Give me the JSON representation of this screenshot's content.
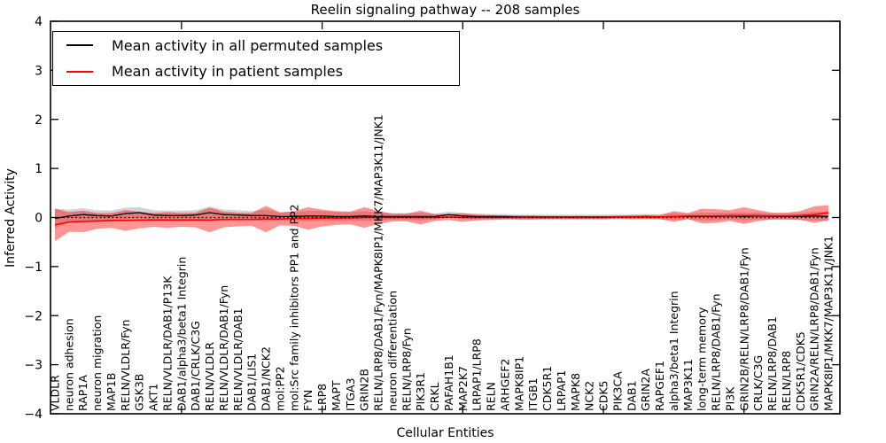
{
  "chart_data": {
    "type": "line",
    "title": "Reelin signaling pathway -- 208 samples",
    "xlabel": "Cellular Entities",
    "ylabel": "Inferred Activity",
    "ylim": [
      -4,
      4
    ],
    "yticks": [
      4,
      3,
      2,
      1,
      0,
      -1,
      -2,
      -3,
      -4
    ],
    "grid": false,
    "legend_position": "upper left",
    "zero_line_style": "dotted",
    "categories": [
      "VLDLR",
      "neuron adhesion",
      "RAP1A",
      "neuron migration",
      "MAP1B",
      "RELN/VLDLR/Fyn",
      "GSK3B",
      "AKT1",
      "RELN/VLDLR/DAB1/P13K",
      "DAB1/alpha3/beta1 Integrin",
      "DAB1/CRLK/C3G",
      "RELN/VLDLR",
      "RELN/VLDLR/DAB1/Fyn",
      "RELN/VLDLR/DAB1",
      "DAB1/LIS1",
      "DAB1/NCK2",
      "mol:PP2",
      "mol:Src family inhibitors PP1 and PP2",
      "FYN",
      "LRP8",
      "MAPT",
      "ITGA3",
      "GRIN2B",
      "RELN/LRP8/DAB1/Fyn/MAPK8IP1/MKK7/MAP3K11/JNK1",
      "neuron differentiation",
      "RELN/LRP8/Fyn",
      "PIK3R1",
      "CRKL",
      "PAFAH1B1",
      "MAP2K7",
      "LRPAP1/LRP8",
      "RELN",
      "ARHGEF2",
      "MAPK8IP1",
      "ITGB1",
      "CDK5R1",
      "LRPAP1",
      "MAPK8",
      "NCK2",
      "CDK5",
      "PIK3CA",
      "DAB1",
      "GRIN2A",
      "RAPGEF1",
      "alpha3/beta1 Integrin",
      "MAP3K11",
      "long-term memory",
      "RELN/LRP8/DAB1/Fyn",
      "PI3K",
      "GRIN2B/RELN/LRP8/DAB1/Fyn",
      "CRLK/C3G",
      "RELN/LRP8/DAB1",
      "RELN/LRP8",
      "CDK5R1/CDK5",
      "GRIN2A/RELN/LRP8/DAB1/Fyn",
      "MAPK8IP1/MKK7/MAP3K11/JNK1"
    ],
    "series": [
      {
        "name": "Mean activity in all permuted samples",
        "color": "#000000",
        "values": [
          -0.02,
          0.03,
          0.06,
          0.04,
          0.03,
          0.08,
          0.1,
          0.05,
          0.04,
          0.04,
          0.05,
          0.1,
          0.06,
          0.05,
          0.04,
          0.04,
          0.02,
          0.02,
          0.03,
          0.03,
          0.02,
          0.02,
          0.03,
          0.02,
          0.02,
          0.02,
          0.02,
          0.02,
          0.06,
          0.03,
          0.02,
          0.02,
          0.02,
          0.01,
          0.01,
          0.01,
          0.01,
          0.01,
          0.01,
          0.01,
          0.01,
          0.01,
          0.02,
          0.01,
          0.02,
          0.02,
          0.02,
          0.02,
          0.03,
          0.02,
          0.03,
          0.02,
          0.02,
          0.02,
          0.03,
          0.02
        ]
      },
      {
        "name": "Mean activity in patient samples",
        "color": "#ff0000",
        "values": [
          -0.15,
          -0.09,
          -0.08,
          -0.07,
          -0.06,
          -0.06,
          -0.05,
          -0.05,
          -0.05,
          -0.05,
          -0.05,
          -0.05,
          -0.04,
          -0.04,
          -0.04,
          -0.03,
          -0.03,
          -0.02,
          -0.02,
          -0.01,
          -0.01,
          -0.01,
          0.0,
          0.0,
          0.0,
          0.0,
          0.0,
          0.0,
          0.01,
          0.0,
          0.0,
          0.0,
          0.0,
          0.0,
          0.0,
          0.0,
          0.0,
          0.0,
          0.0,
          0.0,
          0.01,
          0.01,
          0.01,
          0.01,
          0.02,
          0.03,
          0.03,
          0.03,
          0.04,
          0.04,
          0.04,
          0.03,
          0.03,
          0.04,
          0.06,
          0.1
        ]
      }
    ],
    "bands": [
      {
        "name": "permuted-samples-std-band",
        "series_index": 0,
        "color": "#808080",
        "opacity": 0.35,
        "half_widths": [
          0.2,
          0.13,
          0.13,
          0.11,
          0.11,
          0.12,
          0.11,
          0.1,
          0.1,
          0.1,
          0.1,
          0.12,
          0.1,
          0.1,
          0.09,
          0.12,
          0.09,
          0.09,
          0.11,
          0.1,
          0.09,
          0.09,
          0.1,
          0.08,
          0.07,
          0.07,
          0.08,
          0.06,
          0.06,
          0.06,
          0.06,
          0.05,
          0.05,
          0.05,
          0.05,
          0.05,
          0.05,
          0.05,
          0.05,
          0.05,
          0.05,
          0.05,
          0.05,
          0.05,
          0.07,
          0.06,
          0.08,
          0.08,
          0.07,
          0.08,
          0.07,
          0.06,
          0.06,
          0.07,
          0.09,
          0.1
        ]
      },
      {
        "name": "patient-samples-std-band",
        "series_index": 1,
        "color": "#ff0000",
        "opacity": 0.42,
        "half_widths": [
          0.33,
          0.2,
          0.22,
          0.16,
          0.15,
          0.21,
          0.17,
          0.14,
          0.16,
          0.14,
          0.15,
          0.25,
          0.16,
          0.14,
          0.13,
          0.27,
          0.13,
          0.15,
          0.23,
          0.17,
          0.14,
          0.13,
          0.21,
          0.13,
          0.08,
          0.08,
          0.14,
          0.07,
          0.06,
          0.09,
          0.06,
          0.05,
          0.04,
          0.04,
          0.04,
          0.03,
          0.03,
          0.03,
          0.03,
          0.03,
          0.03,
          0.04,
          0.04,
          0.04,
          0.11,
          0.06,
          0.15,
          0.14,
          0.11,
          0.17,
          0.11,
          0.07,
          0.07,
          0.09,
          0.17,
          0.15
        ]
      }
    ]
  },
  "legend": {
    "items": [
      {
        "label": "Mean activity in all permuted samples",
        "color": "#000000"
      },
      {
        "label": "Mean activity in patient samples",
        "color": "#ff0000"
      }
    ]
  }
}
